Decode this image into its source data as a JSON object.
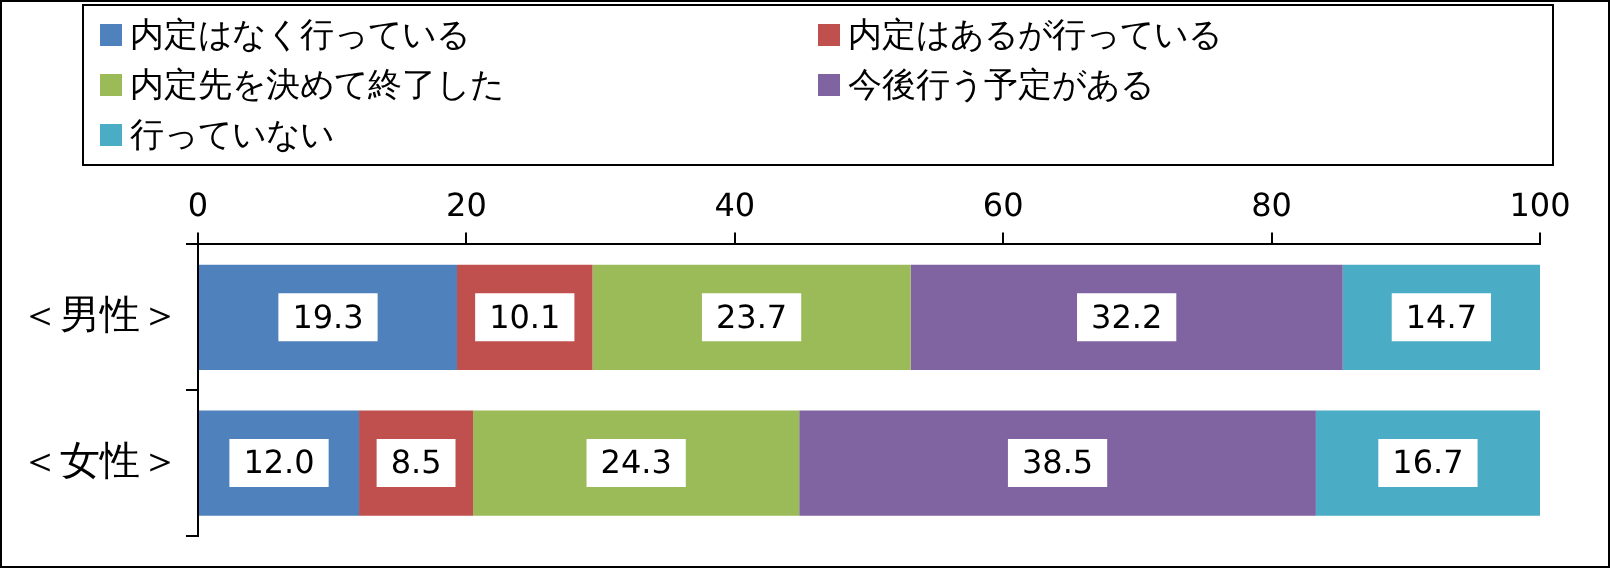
{
  "chart_data": {
    "type": "bar",
    "orientation": "horizontal",
    "stacked": true,
    "categories": [
      "＜男性＞",
      "＜女性＞"
    ],
    "series": [
      {
        "name": "内定はなく行っている",
        "color": "#4f81bd",
        "values": [
          19.3,
          12.0
        ],
        "value_labels": [
          "19.3",
          "12.0"
        ]
      },
      {
        "name": "内定はあるが行っている",
        "color": "#c0504d",
        "values": [
          10.1,
          8.5
        ],
        "value_labels": [
          "10.1",
          "8.5"
        ]
      },
      {
        "name": "内定先を決めて終了した",
        "color": "#9bbb59",
        "values": [
          23.7,
          24.3
        ],
        "value_labels": [
          "23.7",
          "24.3"
        ]
      },
      {
        "name": "今後行う予定がある",
        "color": "#8064a2",
        "values": [
          32.2,
          38.5
        ],
        "value_labels": [
          "32.2",
          "38.5"
        ]
      },
      {
        "name": "行っていない",
        "color": "#4bacc6",
        "values": [
          14.7,
          16.7
        ],
        "value_labels": [
          "14.7",
          "16.7"
        ]
      }
    ],
    "xlim": [
      0,
      100
    ],
    "xticks": [
      0,
      20,
      40,
      60,
      80,
      100
    ],
    "grid": false,
    "legend": "top"
  }
}
